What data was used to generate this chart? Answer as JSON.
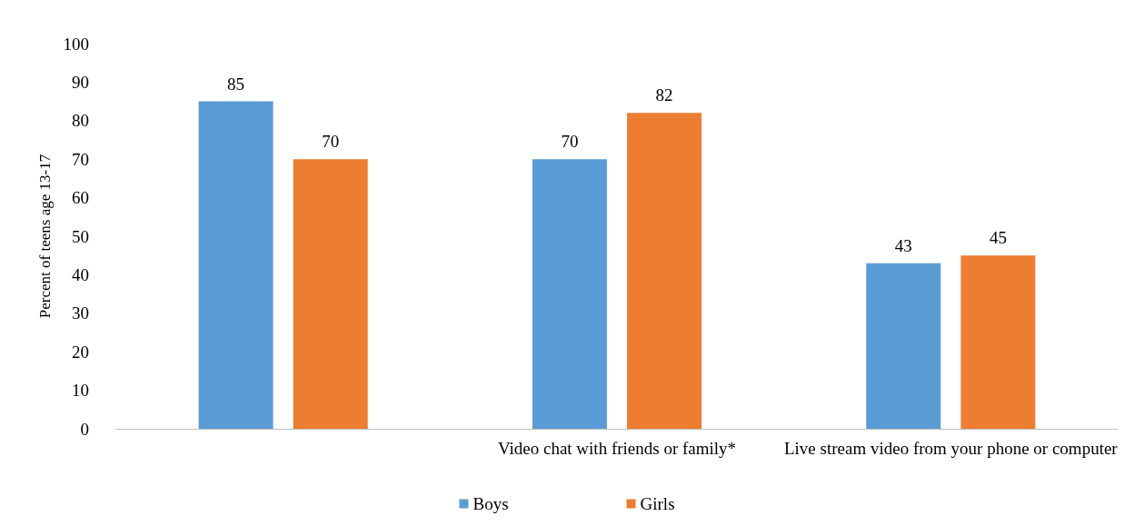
{
  "chart_data": {
    "type": "bar",
    "ylabel": "Percent of teens age 13-17",
    "categories": [
      null,
      "Video chat with friends or family*",
      "Live stream video from your phone or computer"
    ],
    "series": [
      {
        "name": "Boys",
        "color": "#5b9bd5",
        "values": [
          85,
          70,
          43
        ]
      },
      {
        "name": "Girls",
        "color": "#ed7d31",
        "values": [
          70,
          82,
          45
        ]
      }
    ],
    "ylim": [
      0,
      100
    ],
    "yticks": [
      0,
      10,
      20,
      30,
      40,
      50,
      60,
      70,
      80,
      90,
      100
    ],
    "grid": false,
    "legend": "bottom",
    "data_labels": true
  }
}
